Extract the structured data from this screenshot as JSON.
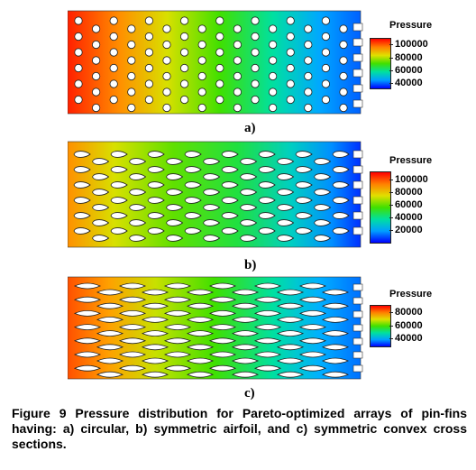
{
  "panels": [
    {
      "label": "a)",
      "legend_title": "Pressure",
      "legend_ticks": [
        "100000",
        "80000",
        "60000",
        "40000"
      ],
      "fin_shape": "circle"
    },
    {
      "label": "b)",
      "legend_title": "Pressure",
      "legend_ticks": [
        "100000",
        "80000",
        "60000",
        "40000",
        "20000"
      ],
      "fin_shape": "airfoil"
    },
    {
      "label": "c)",
      "legend_title": "Pressure",
      "legend_ticks": [
        "80000",
        "60000",
        "40000"
      ],
      "fin_shape": "convex-lens"
    }
  ],
  "colormap": [
    "#0000ff",
    "#00a0ff",
    "#00e0a0",
    "#40e000",
    "#e0e000",
    "#ff8000",
    "#ff0000"
  ],
  "caption": "Figure 9 Pressure distribution for Pareto-optimized arrays of pin-fins having: a) circular, b) symmetric airfoil, and c) symmetric convex cross sections."
}
